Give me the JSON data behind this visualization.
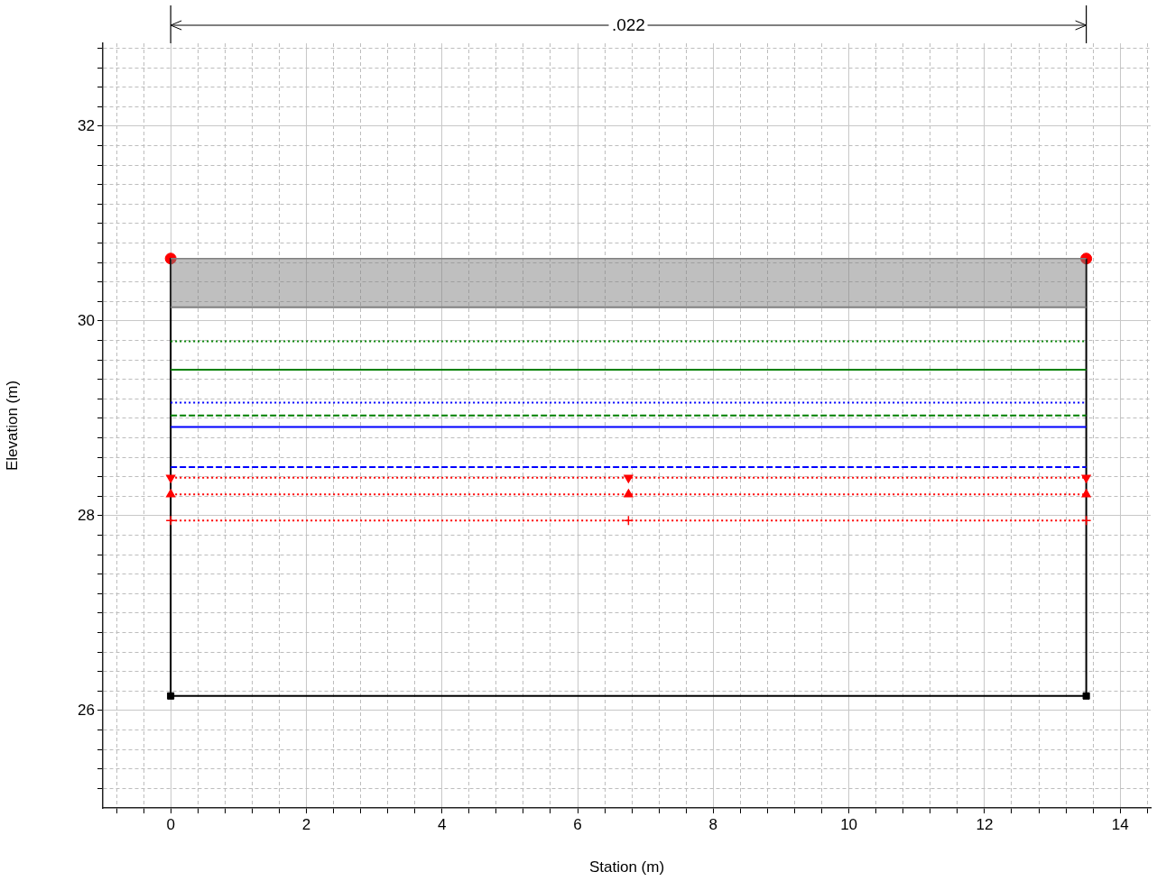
{
  "chart_data": {
    "type": "line",
    "xlabel": "Station (m)",
    "ylabel": "Elevation (m)",
    "annotations": [
      ".022"
    ],
    "xlim": [
      -1,
      14.45
    ],
    "ylim": [
      25,
      32.85
    ],
    "xticks": [
      {
        "value": -0.8,
        "label": null
      },
      {
        "value": -0.4,
        "label": null
      },
      0,
      {
        "value": 0.4,
        "label": null
      },
      {
        "value": 0.8,
        "label": null
      },
      {
        "value": 1.2,
        "label": null
      },
      {
        "value": 1.6,
        "label": null
      },
      2,
      {
        "value": 2.4,
        "label": null
      },
      {
        "value": 2.8,
        "label": null
      },
      {
        "value": 3.2,
        "label": null
      },
      {
        "value": 3.6,
        "label": null
      },
      4,
      {
        "value": 4.4,
        "label": null
      },
      {
        "value": 4.8,
        "label": null
      },
      {
        "value": 5.2,
        "label": null
      },
      {
        "value": 5.6,
        "label": null
      },
      6,
      {
        "value": 6.4,
        "label": null
      },
      {
        "value": 6.8,
        "label": null
      },
      {
        "value": 7.2,
        "label": null
      },
      {
        "value": 7.6,
        "label": null
      },
      8,
      {
        "value": 8.4,
        "label": null
      },
      {
        "value": 8.8,
        "label": null
      },
      {
        "value": 9.2,
        "label": null
      },
      {
        "value": 9.6,
        "label": null
      },
      10,
      {
        "value": 10.4,
        "label": null
      },
      {
        "value": 10.8,
        "label": null
      },
      {
        "value": 11.2,
        "label": null
      },
      {
        "value": 11.6,
        "label": null
      },
      12,
      {
        "value": 12.4,
        "label": null
      },
      {
        "value": 12.8,
        "label": null
      },
      {
        "value": 13.2,
        "label": null
      },
      {
        "value": 13.6,
        "label": null
      },
      14,
      {
        "value": 14.4,
        "label": null
      }
    ],
    "yticks": [
      {
        "value": 25.2,
        "label": null
      },
      {
        "value": 25.4,
        "label": null
      },
      {
        "value": 25.6,
        "label": null
      },
      {
        "value": 25.8,
        "label": null
      },
      26,
      {
        "value": 26.2,
        "label": null
      },
      {
        "value": 26.4,
        "label": null
      },
      {
        "value": 26.6,
        "label": null
      },
      {
        "value": 26.8,
        "label": null
      },
      {
        "value": 27,
        "label": null
      },
      {
        "value": 27.2,
        "label": null
      },
      {
        "value": 27.4,
        "label": null
      },
      {
        "value": 27.6,
        "label": null
      },
      {
        "value": 27.8,
        "label": null
      },
      28,
      {
        "value": 28.2,
        "label": null
      },
      {
        "value": 28.4,
        "label": null
      },
      {
        "value": 28.6,
        "label": null
      },
      {
        "value": 28.8,
        "label": null
      },
      {
        "value": 29,
        "label": null
      },
      {
        "value": 29.2,
        "label": null
      },
      {
        "value": 29.4,
        "label": null
      },
      {
        "value": 29.6,
        "label": null
      },
      {
        "value": 29.8,
        "label": null
      },
      30,
      {
        "value": 30.2,
        "label": null
      },
      {
        "value": 30.4,
        "label": null
      },
      {
        "value": 30.6,
        "label": null
      },
      {
        "value": 30.8,
        "label": null
      },
      {
        "value": 31,
        "label": null
      },
      {
        "value": 31.2,
        "label": null
      },
      {
        "value": 31.4,
        "label": null
      },
      {
        "value": 31.6,
        "label": null
      },
      {
        "value": 31.8,
        "label": null
      },
      32,
      {
        "value": 32.2,
        "label": null
      },
      {
        "value": 32.4,
        "label": null
      },
      {
        "value": 32.6,
        "label": null
      },
      {
        "value": 32.8,
        "label": null
      }
    ],
    "grid": true,
    "legend": false,
    "series": [
      {
        "type": "line",
        "color": "#808080",
        "x": [
          0,
          13.5
        ],
        "values": [
          30.14,
          30.14
        ],
        "line_style": "solid",
        "marker": "none"
      },
      {
        "type": "area",
        "color": "#808080",
        "x": [
          0,
          13.5
        ],
        "values": [
          30.64,
          30.64
        ]
      },
      {
        "type": "line",
        "color": "#008000",
        "x": [
          0,
          13.5
        ],
        "values": [
          29.79,
          29.79
        ],
        "line_style": "dotted",
        "marker": "none"
      },
      {
        "type": "line",
        "color": "#008000",
        "x": [
          0,
          13.5
        ],
        "values": [
          29.5,
          29.5
        ],
        "line_style": "solid",
        "marker": "none"
      },
      {
        "type": "line",
        "color": "#0000ff",
        "x": [
          0,
          13.5
        ],
        "values": [
          29.16,
          29.16
        ],
        "line_style": "dotted",
        "marker": "none"
      },
      {
        "type": "line",
        "color": "#008000",
        "x": [
          0,
          13.5
        ],
        "values": [
          29.03,
          29.03
        ],
        "line_style": "dashed",
        "marker": "none"
      },
      {
        "type": "line",
        "color": "#0000ff",
        "x": [
          0,
          13.5
        ],
        "values": [
          28.91,
          28.91
        ],
        "line_style": "solid",
        "marker": "none"
      },
      {
        "type": "line",
        "color": "#0000ff",
        "x": [
          0,
          13.5
        ],
        "values": [
          28.5,
          28.5
        ],
        "line_style": "dashed",
        "marker": "none"
      },
      {
        "type": "line",
        "color": "#ff0000",
        "x": [
          0,
          6.75,
          13.5
        ],
        "values": [
          28.39,
          28.39,
          28.39
        ],
        "line_style": "dotted",
        "marker": "triangle-down"
      },
      {
        "type": "line",
        "color": "#ff0000",
        "x": [
          0,
          6.75,
          13.5
        ],
        "values": [
          28.22,
          28.22,
          28.22
        ],
        "line_style": "dotted",
        "marker": "triangle"
      },
      {
        "type": "line",
        "color": "#ff0000",
        "x": [
          0,
          6.75,
          13.5
        ],
        "values": [
          27.95,
          27.95,
          27.95
        ],
        "line_style": "dotted",
        "marker": "cross"
      },
      {
        "type": "line",
        "color": "#000000",
        "x": [
          0,
          0,
          13.5,
          13.5
        ],
        "values": [
          30.64,
          26.15,
          26.15,
          30.64
        ],
        "line_style": "solid",
        "marker": "none"
      },
      {
        "type": "scatter",
        "color": "#000000",
        "x": [
          0,
          13.5
        ],
        "values": [
          26.15,
          26.15
        ],
        "marker": "square"
      },
      {
        "type": "scatter",
        "color": "#ff0000",
        "x": [
          0,
          13.5
        ],
        "values": [
          30.64,
          30.64
        ],
        "marker": "circle"
      }
    ]
  }
}
